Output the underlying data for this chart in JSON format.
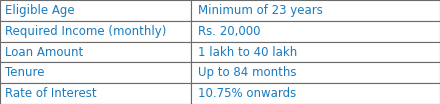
{
  "rows": [
    [
      "Eligible Age",
      "Minimum of 23 years"
    ],
    [
      "Required Income (monthly)",
      "Rs. 20,000"
    ],
    [
      "Loan Amount",
      "1 lakh to 40 lakh"
    ],
    [
      "Tenure",
      "Up to 84 months"
    ],
    [
      "Rate of Interest",
      "10.75% onwards"
    ]
  ],
  "text_color": "#1a7abf",
  "border_color": "#6a6a6a",
  "bg_color": "#ffffff",
  "font_size": 8.5,
  "col_split": 0.435,
  "fig_width": 4.4,
  "fig_height": 1.04,
  "dpi": 100
}
